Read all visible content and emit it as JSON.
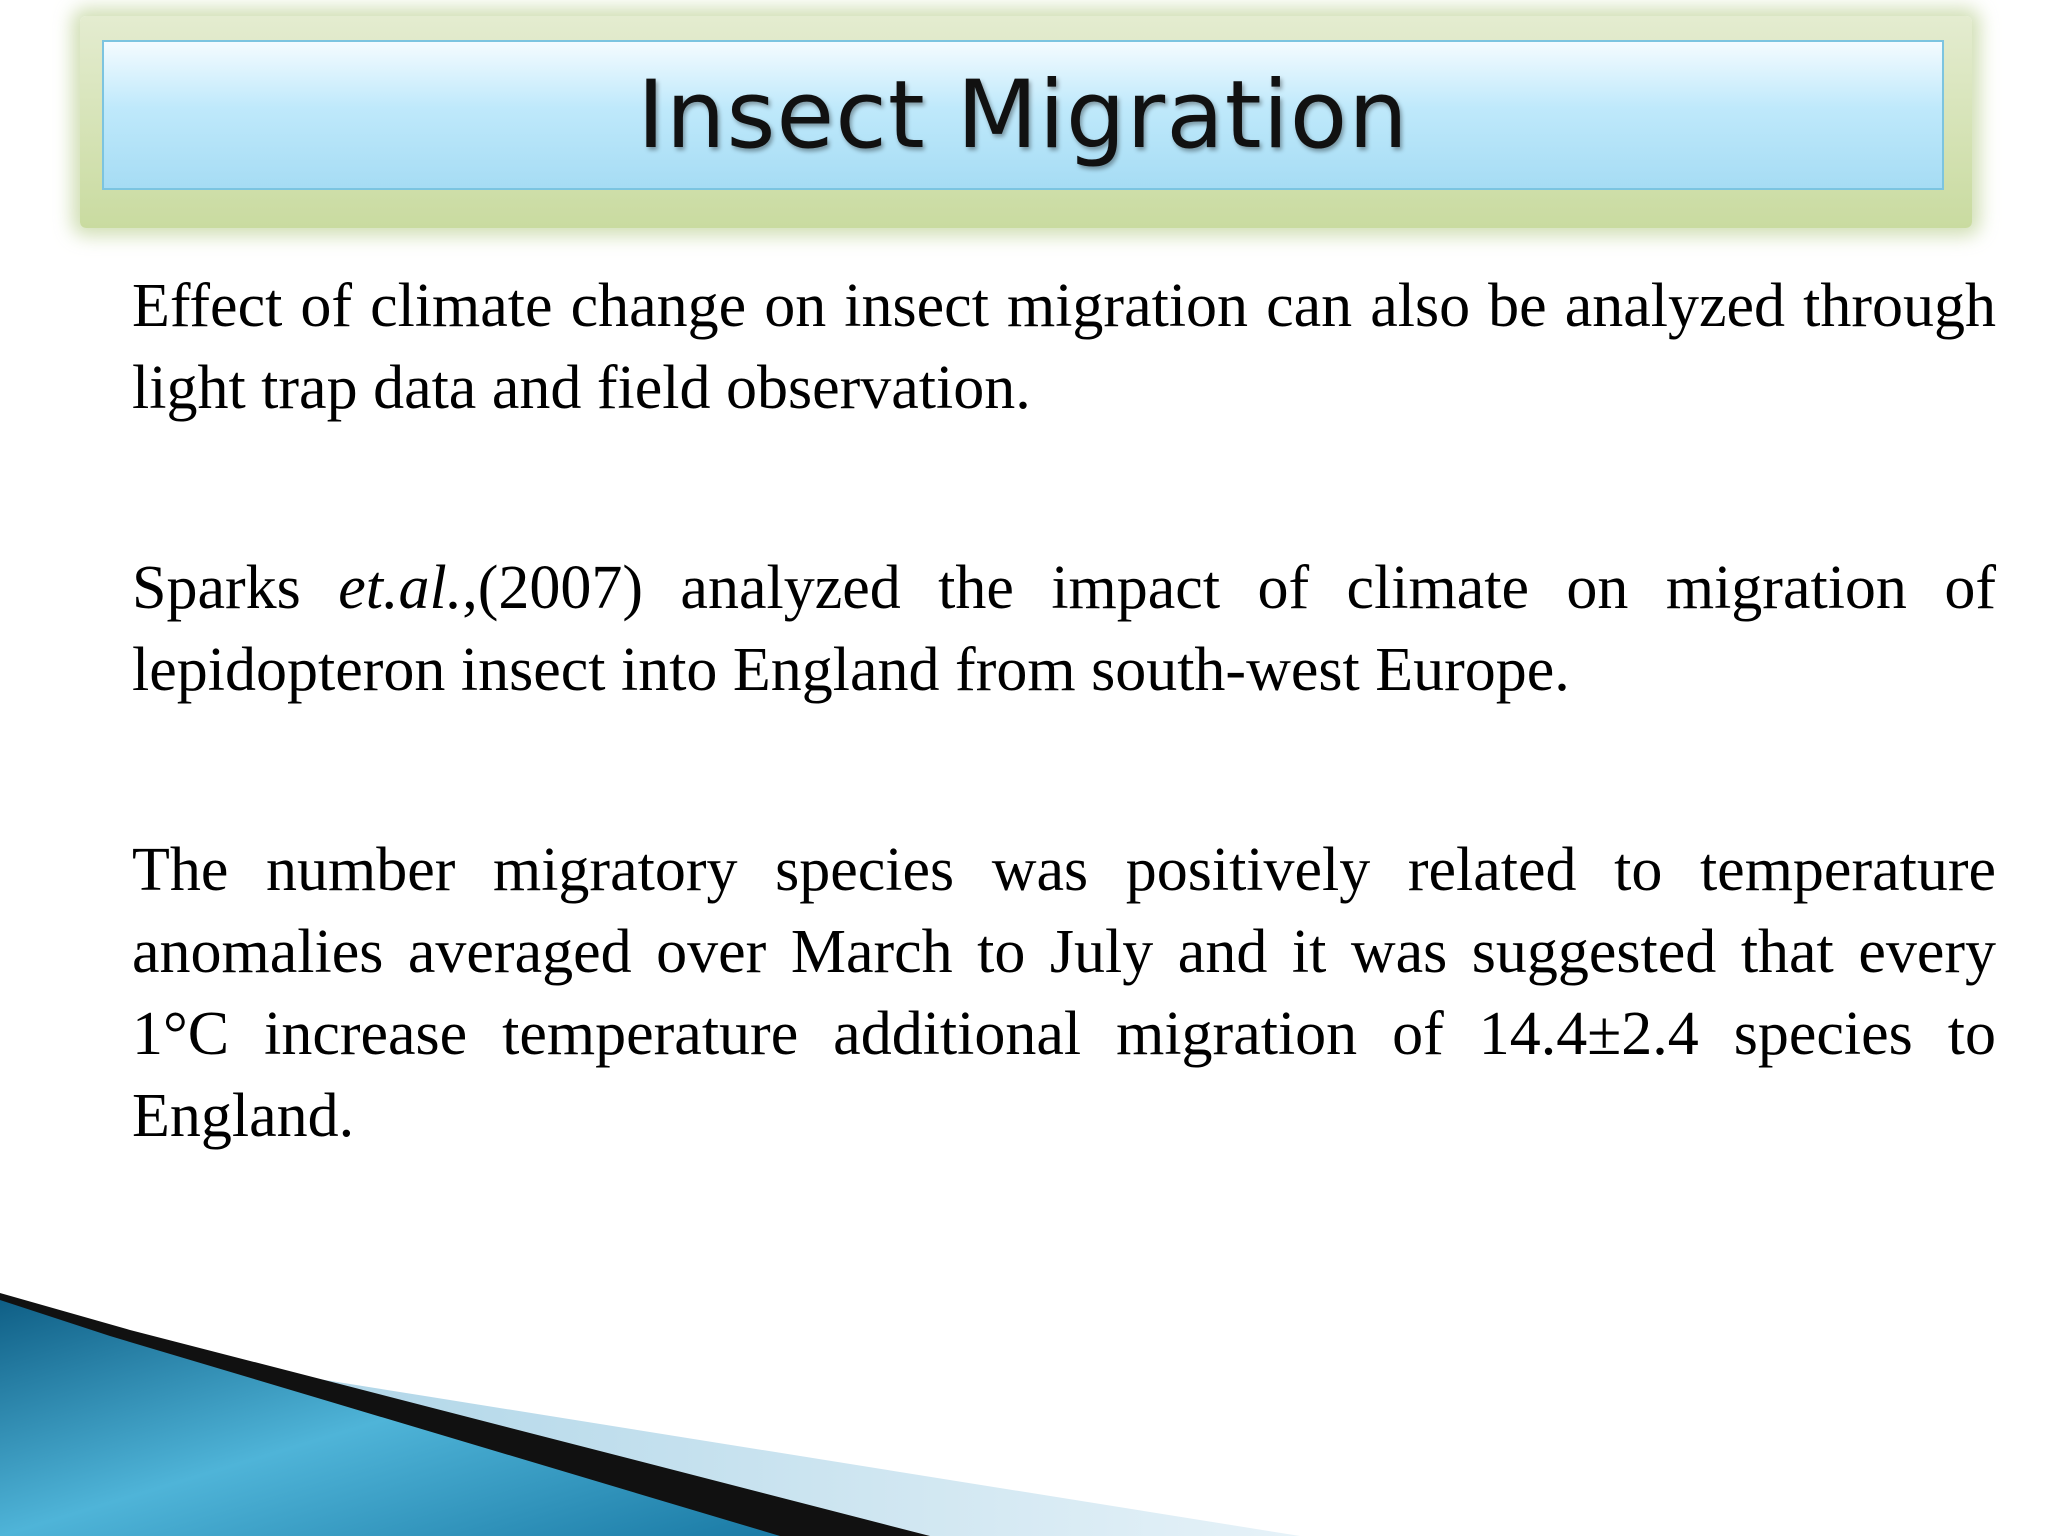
{
  "header": {
    "title": "Insect Migration"
  },
  "paragraphs": [
    {
      "runs": [
        {
          "text": "Effect of climate change on insect migration can also be analyzed through light trap data and field observation.",
          "italic": false
        }
      ]
    },
    {
      "runs": [
        {
          "text": "Sparks ",
          "italic": false
        },
        {
          "text": "et.al.",
          "italic": true
        },
        {
          "text": ",(2007) analyzed the impact of climate on migration of lepidopteron insect into England from south-west Europe.",
          "italic": false
        }
      ]
    },
    {
      "runs": [
        {
          "text": "The number migratory species was positively related to temperature anomalies averaged over March to July and it was suggested that every 1°C increase temperature additional migration of 14.4±2.4 species to England.",
          "italic": false
        }
      ]
    }
  ]
}
